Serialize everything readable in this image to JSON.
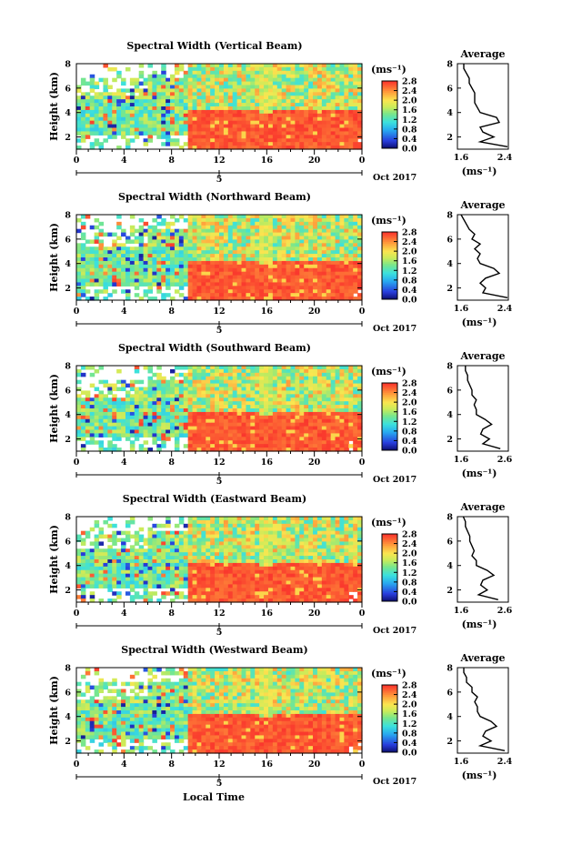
{
  "chart_data": [
    {
      "type": "heatmap",
      "title": "Spectral Width (Vertical Beam)",
      "ylabel": "Height (km)",
      "xlabel": "",
      "x_ticks": [
        "0",
        "4",
        "8",
        "12",
        "16",
        "20",
        "0"
      ],
      "x_sub": "5",
      "date": "Oct 2017",
      "y_ticks": [
        "2",
        "4",
        "6",
        "8"
      ],
      "ylim": [
        1,
        8
      ],
      "xlim": [
        0,
        24
      ],
      "colorbar": {
        "unit": "(ms⁻¹)",
        "ticks": [
          "0.0",
          "0.4",
          "0.8",
          "1.2",
          "1.6",
          "2.0",
          "2.4",
          "2.8"
        ]
      },
      "profile": {
        "title": "Average",
        "xlim_labels": [
          "1.6",
          "2.4"
        ],
        "xlabel": "(ms⁻¹)",
        "y_ticks": [
          "2",
          "4",
          "6",
          "8"
        ],
        "height": [
          1.2,
          1.6,
          2.0,
          2.4,
          2.8,
          3.2,
          3.6,
          4.0,
          4.4,
          4.8,
          5.2,
          5.6,
          6.0,
          6.4,
          6.8,
          7.2,
          7.6,
          8.0
        ],
        "value": [
          2.45,
          1.95,
          2.2,
          2.0,
          1.95,
          2.3,
          2.25,
          1.95,
          1.9,
          1.85,
          1.85,
          1.85,
          1.8,
          1.75,
          1.75,
          1.7,
          1.65,
          1.65
        ]
      }
    },
    {
      "type": "heatmap",
      "title": "Spectral Width (Northward Beam)",
      "ylabel": "Height (km)",
      "xlabel": "",
      "x_ticks": [
        "0",
        "4",
        "8",
        "12",
        "16",
        "20",
        "0"
      ],
      "x_sub": "5",
      "date": "Oct 2017",
      "y_ticks": [
        "2",
        "4",
        "6",
        "8"
      ],
      "ylim": [
        1,
        8
      ],
      "xlim": [
        0,
        24
      ],
      "colorbar": {
        "unit": "(ms⁻¹)",
        "ticks": [
          "0.0",
          "0.4",
          "0.8",
          "1.2",
          "1.6",
          "2.0",
          "2.4",
          "2.8"
        ]
      },
      "profile": {
        "title": "Average",
        "xlim_labels": [
          "1.6",
          "2.4"
        ],
        "xlabel": "(ms⁻¹)",
        "y_ticks": [
          "2",
          "4",
          "6",
          "8"
        ],
        "height": [
          1.2,
          1.6,
          2.0,
          2.4,
          2.8,
          3.2,
          3.6,
          4.0,
          4.4,
          4.8,
          5.2,
          5.6,
          6.0,
          6.4,
          6.8,
          7.2,
          7.6,
          8.0
        ],
        "value": [
          2.45,
          2.0,
          2.05,
          1.95,
          2.05,
          2.3,
          2.2,
          1.95,
          1.9,
          1.95,
          1.85,
          1.95,
          1.8,
          1.85,
          1.75,
          1.7,
          1.65,
          1.6
        ]
      }
    },
    {
      "type": "heatmap",
      "title": "Spectral Width (Southward Beam)",
      "ylabel": "Height (km)",
      "xlabel": "",
      "x_ticks": [
        "0",
        "4",
        "8",
        "12",
        "16",
        "20",
        "0"
      ],
      "x_sub": "5",
      "date": "Oct 2017",
      "y_ticks": [
        "2",
        "4",
        "6",
        "8"
      ],
      "ylim": [
        1,
        8
      ],
      "xlim": [
        0,
        24
      ],
      "colorbar": {
        "unit": "(ms⁻¹)",
        "ticks": [
          "0.0",
          "0.4",
          "0.8",
          "1.2",
          "1.6",
          "2.0",
          "2.4",
          "2.8"
        ]
      },
      "profile": {
        "title": "Average",
        "xlim_labels": [
          "1.6",
          "2.6"
        ],
        "xlabel": "(ms⁻¹)",
        "y_ticks": [
          "2",
          "4",
          "6",
          "8"
        ],
        "height": [
          1.2,
          1.6,
          2.0,
          2.4,
          2.8,
          3.2,
          3.6,
          4.0,
          4.4,
          4.8,
          5.2,
          5.6,
          6.0,
          6.4,
          6.8,
          7.2,
          7.6,
          8.0
        ],
        "value": [
          2.5,
          2.1,
          2.25,
          2.05,
          2.1,
          2.3,
          2.15,
          1.95,
          1.95,
          1.9,
          1.95,
          1.85,
          1.85,
          1.8,
          1.75,
          1.75,
          1.7,
          1.7
        ]
      }
    },
    {
      "type": "heatmap",
      "title": "Spectral Width (Eastward Beam)",
      "ylabel": "Height (km)",
      "xlabel": "",
      "x_ticks": [
        "0",
        "4",
        "8",
        "12",
        "16",
        "20",
        "0"
      ],
      "x_sub": "5",
      "date": "Oct 2017",
      "y_ticks": [
        "2",
        "4",
        "6",
        "8"
      ],
      "ylim": [
        1,
        8
      ],
      "xlim": [
        0,
        24
      ],
      "colorbar": {
        "unit": "(ms⁻¹)",
        "ticks": [
          "0.0",
          "0.4",
          "0.8",
          "1.2",
          "1.6",
          "2.0",
          "2.4",
          "2.8"
        ]
      },
      "profile": {
        "title": "Average",
        "xlim_labels": [
          "1.6",
          "2.6"
        ],
        "xlabel": "(ms⁻¹)",
        "y_ticks": [
          "2",
          "4",
          "6",
          "8"
        ],
        "height": [
          1.2,
          1.6,
          2.0,
          2.4,
          2.8,
          3.2,
          3.6,
          4.0,
          4.4,
          4.8,
          5.2,
          5.6,
          6.0,
          6.4,
          6.8,
          7.2,
          7.6,
          8.0
        ],
        "value": [
          2.45,
          2.0,
          2.2,
          2.05,
          2.1,
          2.35,
          2.2,
          1.95,
          1.95,
          1.85,
          1.9,
          1.85,
          1.8,
          1.8,
          1.75,
          1.7,
          1.7,
          1.65
        ]
      }
    },
    {
      "type": "heatmap",
      "title": "Spectral Width (Westward Beam)",
      "ylabel": "Height (km)",
      "xlabel": "Local Time",
      "x_ticks": [
        "0",
        "4",
        "8",
        "12",
        "16",
        "20",
        "0"
      ],
      "x_sub": "5",
      "date": "Oct 2017",
      "y_ticks": [
        "2",
        "4",
        "6",
        "8"
      ],
      "ylim": [
        1,
        8
      ],
      "xlim": [
        0,
        24
      ],
      "colorbar": {
        "unit": "(ms⁻¹)",
        "ticks": [
          "0.0",
          "0.4",
          "0.8",
          "1.2",
          "1.6",
          "2.0",
          "2.4",
          "2.8"
        ]
      },
      "profile": {
        "title": "Average",
        "xlim_labels": [
          "1.6",
          "2.4"
        ],
        "xlabel": "(ms⁻¹)",
        "y_ticks": [
          "2",
          "4",
          "6",
          "8"
        ],
        "height": [
          1.2,
          1.6,
          2.0,
          2.4,
          2.8,
          3.2,
          3.6,
          4.0,
          4.4,
          4.8,
          5.2,
          5.6,
          6.0,
          6.4,
          6.8,
          7.2,
          7.6,
          8.0
        ],
        "value": [
          2.4,
          1.95,
          2.15,
          2.0,
          2.05,
          2.25,
          2.15,
          1.95,
          1.9,
          1.9,
          1.85,
          1.9,
          1.8,
          1.8,
          1.7,
          1.7,
          1.65,
          1.65
        ]
      }
    }
  ],
  "colors": {
    "low": "#0b0b6b",
    "mid": "#30d0f0",
    "high": "#ff3a30"
  }
}
